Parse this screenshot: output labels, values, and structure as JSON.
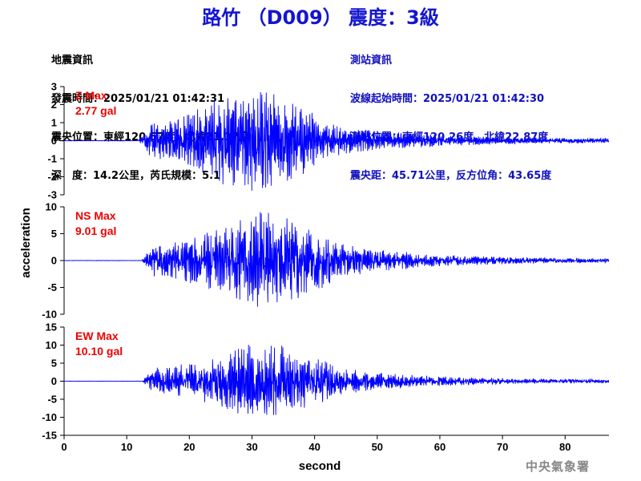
{
  "title": "路竹 （D009） 震度：3級",
  "earthquake": {
    "heading": "地震資訊",
    "time": "發震時間：2025/01/21 01:42:31",
    "epicenter": "震央位置：東經120.57度，北緯23.17度",
    "depth": "深　度：14.2公里，芮氏規模：5.1"
  },
  "station": {
    "heading": "測站資訊",
    "wave_start": "波線起始時間：2025/01/21 01:42:30",
    "location": "測站位置：東經120.26度，北緯22.87度",
    "distance": "震央距：45.71公里，反方位角：43.65度"
  },
  "credit": "中央氣象署",
  "colors": {
    "title": "#1515d0",
    "trace": "#0000ff",
    "max_label": "#ee0000"
  },
  "chart_data": {
    "type": "line",
    "xlabel": "second",
    "ylabel": "acceleration",
    "xlim": [
      0,
      87
    ],
    "xticks": [
      0,
      10,
      20,
      30,
      40,
      50,
      60,
      70,
      80
    ],
    "panels": [
      {
        "name": "Z",
        "max_label": "Z Max",
        "max_value": "2.77 gal",
        "peak": 2.77,
        "ylim": [
          -3,
          3
        ],
        "yticks": [
          3,
          2,
          1,
          0,
          -1,
          -2,
          -3
        ],
        "onset": 12.0,
        "strong_end": 40,
        "seed": 11
      },
      {
        "name": "NS",
        "max_label": "NS Max",
        "max_value": "9.01 gal",
        "peak": 9.01,
        "ylim": [
          -10,
          10
        ],
        "yticks": [
          10,
          5,
          0,
          -5,
          -10
        ],
        "onset": 12.5,
        "strong_end": 43,
        "seed": 23
      },
      {
        "name": "EW",
        "max_label": "EW Max",
        "max_value": "10.10 gal",
        "peak": 10.1,
        "ylim": [
          -15,
          15
        ],
        "yticks": [
          15,
          10,
          5,
          0,
          -5,
          -10,
          -15
        ],
        "onset": 12.5,
        "strong_end": 43,
        "seed": 37
      }
    ]
  }
}
